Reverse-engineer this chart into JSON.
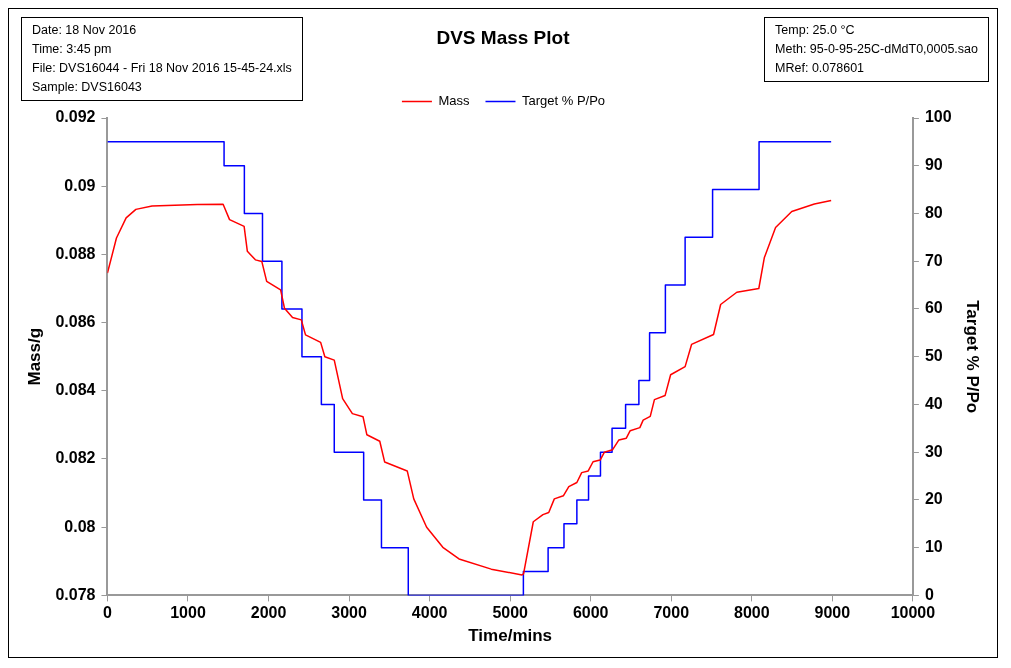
{
  "chart_data": {
    "type": "line",
    "title": "DVS Mass Plot",
    "xlabel": "Time/mins",
    "ylabel": "Mass/g",
    "y2label": "Target % P/Po",
    "annotations": [
      "Date:  18 Nov 2016",
      "Time:  3:45 pm",
      "File:  DVS16044 - Fri 18 Nov 2016 15-45-24.xls",
      "Sample:  DVS16043",
      "Temp:  25.0 °C",
      "Meth:  95-0-95-25C-dMdT0,0005.sao",
      "MRef:  0.078601"
    ],
    "xlim": [
      0,
      10000
    ],
    "xticks": [
      0,
      1000,
      2000,
      3000,
      4000,
      5000,
      6000,
      7000,
      8000,
      9000,
      10000
    ],
    "ylim": [
      0.078,
      0.092
    ],
    "yticks": [
      0.078,
      0.08,
      0.082,
      0.084,
      0.086,
      0.088,
      0.09,
      0.092
    ],
    "y2lim": [
      0,
      100
    ],
    "y2ticks": [
      0,
      10,
      20,
      30,
      40,
      50,
      60,
      70,
      80,
      90,
      100
    ],
    "grid": false,
    "legend": "top",
    "marker": "none",
    "series": [
      {
        "name": "Mass",
        "color": "#ff0000",
        "type": "line",
        "x": [
          0,
          112,
          232,
          353,
          554,
          1115,
          1436,
          1516,
          1697,
          1737,
          1837,
          1917,
          1977,
          2150,
          2198,
          2298,
          2407,
          2459,
          2647,
          2699,
          2816,
          2920,
          3041,
          3173,
          3221,
          3381,
          3442,
          3722,
          3803,
          3963,
          4164,
          4365,
          4765,
          5147,
          5166,
          5287,
          5407,
          5479,
          5548,
          5660,
          5728,
          5828,
          5888,
          5969,
          6029,
          6117,
          6170,
          6270,
          6350,
          6442,
          6490,
          6610,
          6651,
          6739,
          6791,
          6923,
          6992,
          7172,
          7252,
          7525,
          7613,
          7814,
          8087,
          8155,
          8295,
          8496,
          8777,
          8985
        ],
        "values": [
          0.08745,
          0.08848,
          0.08907,
          0.08932,
          0.08942,
          0.08946,
          0.08947,
          0.08902,
          0.08882,
          0.08809,
          0.08784,
          0.08779,
          0.08721,
          0.08696,
          0.08642,
          0.08615,
          0.08608,
          0.08564,
          0.08542,
          0.085,
          0.0849,
          0.08377,
          0.08333,
          0.08324,
          0.08271,
          0.08252,
          0.08191,
          0.08165,
          0.08083,
          0.08,
          0.07941,
          0.07907,
          0.07877,
          0.0786,
          0.07863,
          0.08016,
          0.08037,
          0.08043,
          0.08083,
          0.08092,
          0.08119,
          0.08131,
          0.0816,
          0.08165,
          0.08192,
          0.08197,
          0.0822,
          0.08227,
          0.08256,
          0.08261,
          0.08283,
          0.08292,
          0.08314,
          0.08325,
          0.08374,
          0.08386,
          0.08447,
          0.08471,
          0.08536,
          0.08565,
          0.08653,
          0.08689,
          0.087,
          0.0879,
          0.08879,
          0.08926,
          0.08948,
          0.08958
        ]
      },
      {
        "name": "Target % P/Po",
        "color": "#0000ff",
        "type": "step",
        "axis": "y2",
        "x": [
          0,
          1448,
          1700,
          1925,
          2166,
          2415,
          2656,
          2816,
          3181,
          3402,
          3735,
          5164,
          5471,
          5668,
          5828,
          5973,
          6121,
          6265,
          6433,
          6598,
          6731,
          6927,
          7172,
          7513,
          8090,
          8985
        ],
        "values": [
          95,
          90,
          80,
          70,
          60,
          50,
          40,
          30,
          20,
          10,
          0,
          5,
          10,
          15,
          20,
          25,
          30,
          35,
          40,
          45,
          55,
          65,
          75,
          85,
          95,
          95
        ]
      }
    ]
  }
}
